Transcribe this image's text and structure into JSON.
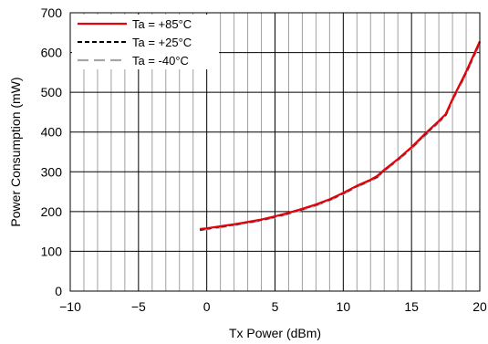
{
  "chart_data": {
    "type": "line",
    "title": "",
    "xlabel": "Tx Power (dBm)",
    "ylabel": "Power Consumption (mW)",
    "xlim": [
      -10,
      20
    ],
    "ylim": [
      0,
      700
    ],
    "x_major_ticks": [
      -10,
      -5,
      0,
      5,
      10,
      15,
      20
    ],
    "x_tick_labels": [
      "−10",
      "−5",
      "0",
      "5",
      "10",
      "15",
      "20"
    ],
    "y_major_ticks": [
      0,
      100,
      200,
      300,
      400,
      500,
      600,
      700
    ],
    "y_tick_labels": [
      "0",
      "100",
      "200",
      "300",
      "400",
      "500",
      "600",
      "700"
    ],
    "x_minor_step": 1,
    "grid": true,
    "legend_position": "top-left",
    "series": [
      {
        "name": "Ta = +85°C",
        "color": "#e8000b",
        "dash": "solid",
        "x": [
          -0.5,
          0,
          1,
          2,
          3,
          4,
          5,
          6,
          7,
          8,
          9,
          10,
          11,
          12,
          12.5,
          13,
          14,
          15,
          16,
          17,
          17.5,
          18,
          19,
          20
        ],
        "y": [
          156,
          158,
          163,
          168,
          174,
          180,
          188,
          197,
          207,
          218,
          231,
          247,
          265,
          280,
          290,
          305,
          332,
          362,
          396,
          428,
          445,
          483,
          552,
          628
        ]
      },
      {
        "name": "Ta = +25°C",
        "color": "#000000",
        "dash": "dashed",
        "x": [
          -0.5,
          0,
          1,
          2,
          3,
          4,
          5,
          6,
          7,
          8,
          9,
          10,
          11,
          12,
          12.5,
          13,
          14,
          15,
          16,
          17,
          17.5,
          18,
          19,
          20
        ],
        "y": [
          154,
          157,
          162,
          167,
          173,
          179,
          187,
          196,
          206,
          217,
          230,
          246,
          264,
          279,
          288,
          304,
          331,
          361,
          394,
          427,
          443,
          482,
          550,
          626
        ]
      },
      {
        "name": "Ta = -40°C",
        "color": "#a6a6a6",
        "dash": "longdash",
        "x": [
          -0.5,
          0,
          1,
          2,
          3,
          4,
          5,
          6,
          7,
          8,
          9,
          10,
          11,
          12,
          12.5,
          13,
          14,
          15,
          16,
          17,
          17.5,
          18,
          19,
          20
        ],
        "y": [
          153,
          155,
          160,
          166,
          171,
          178,
          185,
          194,
          204,
          215,
          228,
          244,
          262,
          277,
          286,
          302,
          329,
          358,
          391,
          424,
          440,
          479,
          546,
          623
        ]
      }
    ]
  }
}
